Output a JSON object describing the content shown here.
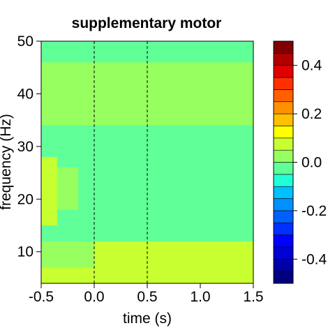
{
  "chart_data": {
    "type": "heatmap",
    "title": "supplementary motor",
    "xlabel": "time (s)",
    "ylabel": "frequency (Hz)",
    "xlim": [
      -0.5,
      1.5
    ],
    "ylim": [
      4,
      50
    ],
    "x_ticks": [
      "-0.5",
      "0.0",
      "0.5",
      "1.0",
      "1.5"
    ],
    "x_tick_values": [
      -0.5,
      0.0,
      0.5,
      1.0,
      1.5
    ],
    "y_ticks": [
      "10",
      "20",
      "30",
      "40",
      "50"
    ],
    "y_tick_values": [
      10,
      20,
      30,
      40,
      50
    ],
    "vlines": [
      0.0,
      0.5
    ],
    "vline_style": "dashed",
    "colorbar": {
      "min": -0.5,
      "max": 0.5,
      "ticks": [
        "0.4",
        "0.2",
        "0.0",
        "-0.2",
        "-0.4"
      ],
      "tick_values": [
        0.4,
        0.2,
        0.0,
        -0.2,
        -0.4
      ],
      "colors": [
        "#00007f",
        "#0000a8",
        "#0000d4",
        "#0000ff",
        "#0030ff",
        "#0060ff",
        "#0090ff",
        "#00c0ff",
        "#20ffd8",
        "#60ff98",
        "#98ff60",
        "#c8ff30",
        "#ffff00",
        "#ffc000",
        "#ff9000",
        "#ff6000",
        "#ff3000",
        "#e00000",
        "#b00000",
        "#7f0000"
      ]
    },
    "regions": [
      {
        "t0": -0.5,
        "t1": 1.5,
        "f0": 4,
        "f1": 7,
        "value": 0.06
      },
      {
        "t0": -0.5,
        "t1": 0.0,
        "f0": 7,
        "f1": 12,
        "value": 0.04
      },
      {
        "t0": 0.0,
        "t1": 0.5,
        "f0": 7,
        "f1": 13,
        "value": 0.05
      },
      {
        "t0": 0.5,
        "t1": 1.5,
        "f0": 7,
        "f1": 16,
        "value": 0.06
      },
      {
        "t0": -0.5,
        "t1": 1.5,
        "f0": 12,
        "f1": 20,
        "value": -0.02
      },
      {
        "t0": -0.5,
        "t1": -0.35,
        "f0": 15,
        "f1": 28,
        "value": 0.05
      },
      {
        "t0": -0.35,
        "t1": -0.15,
        "f0": 18,
        "f1": 26,
        "value": 0.03
      },
      {
        "t0": -0.5,
        "t1": 1.5,
        "f0": 28,
        "f1": 34,
        "value": -0.02
      },
      {
        "t0": -0.5,
        "t1": 1.5,
        "f0": 34,
        "f1": 46,
        "value": 0.04
      },
      {
        "t0": -0.5,
        "t1": 1.5,
        "f0": 46,
        "f1": 50,
        "value": -0.02
      }
    ],
    "background_value": -0.02
  }
}
